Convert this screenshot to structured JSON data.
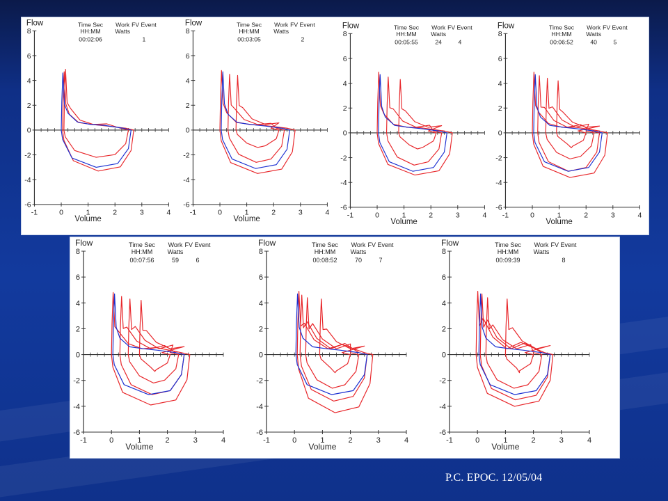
{
  "slide": {
    "footer": "P.C. EPOC. 12/05/04",
    "colors": {
      "background": "#123a9e",
      "panel": "#ffffff",
      "exercise": "#e8262a",
      "baseline": "#1a2fd1"
    }
  },
  "chart_data": [
    {
      "type": "line",
      "plot": "flow-volume",
      "ylabel": "Flow",
      "xlabel": "Volume",
      "xlim": [
        -1,
        4
      ],
      "ylim": [
        -6,
        8
      ],
      "xticks": [
        "-1",
        "0",
        "1",
        "2",
        "3",
        "4"
      ],
      "yticks": [
        "8",
        "6",
        "4",
        "2",
        "0",
        "-2",
        "-4",
        "-6"
      ],
      "header_labels": {
        "col1": [
          "Time Sec",
          "HH:MM"
        ],
        "col2": [
          "Work",
          "Watts"
        ],
        "col3": [
          "FV Event"
        ]
      },
      "time": "00:02:06",
      "work": "",
      "event": "1",
      "loops": [
        {
          "series": "exercise",
          "count": 2
        },
        {
          "series": "baseline",
          "count": 1
        }
      ]
    },
    {
      "type": "line",
      "plot": "flow-volume",
      "ylabel": "Flow",
      "xlabel": "Volume",
      "xlim": [
        -1,
        4
      ],
      "ylim": [
        -6,
        8
      ],
      "xticks": [
        "-1",
        "0",
        "1",
        "2",
        "3",
        "4"
      ],
      "yticks": [
        "8",
        "6",
        "4",
        "2",
        "0",
        "-2",
        "-4",
        "-6"
      ],
      "header_labels": {
        "col1": [
          "Time Sec",
          "HH:MM"
        ],
        "col2": [
          "Work",
          "Watts"
        ],
        "col3": [
          "FV Event"
        ]
      },
      "time": "00:03:05",
      "work": "",
      "event": "2",
      "loops": [
        {
          "series": "exercise",
          "count": 3
        },
        {
          "series": "baseline",
          "count": 1
        }
      ]
    },
    {
      "type": "line",
      "plot": "flow-volume",
      "ylabel": "Flow",
      "xlabel": "Volume",
      "xlim": [
        -1,
        4
      ],
      "ylim": [
        -6,
        8
      ],
      "xticks": [
        "-1",
        "0",
        "1",
        "2",
        "3",
        "4"
      ],
      "yticks": [
        "8",
        "6",
        "4",
        "2",
        "0",
        "-2",
        "-4",
        "-6"
      ],
      "header_labels": {
        "col1": [
          "Time Sec",
          "HH:MM"
        ],
        "col2": [
          "Work",
          "Watts"
        ],
        "col3": [
          "FV Event"
        ]
      },
      "time": "00:05:55",
      "work": "24",
      "event": "4",
      "loops": [
        {
          "series": "exercise",
          "count": 3
        },
        {
          "series": "baseline",
          "count": 1
        }
      ]
    },
    {
      "type": "line",
      "plot": "flow-volume",
      "ylabel": "Flow",
      "xlabel": "Volume",
      "xlim": [
        -1,
        4
      ],
      "ylim": [
        -6,
        8
      ],
      "xticks": [
        "-1",
        "0",
        "1",
        "2",
        "3",
        "4"
      ],
      "yticks": [
        "8",
        "6",
        "4",
        "2",
        "0",
        "-2",
        "-4",
        "-6"
      ],
      "header_labels": {
        "col1": [
          "Time Sec",
          "HH:MM"
        ],
        "col2": [
          "Work",
          "Watts"
        ],
        "col3": [
          "FV Event"
        ]
      },
      "time": "00:06:52",
      "work": "40",
      "event": "5",
      "loops": [
        {
          "series": "exercise",
          "count": 4
        },
        {
          "series": "baseline",
          "count": 1
        }
      ]
    },
    {
      "type": "line",
      "plot": "flow-volume",
      "ylabel": "Flow",
      "xlabel": "Volume",
      "xlim": [
        -1,
        4
      ],
      "ylim": [
        -6,
        8
      ],
      "xticks": [
        "-1",
        "0",
        "1",
        "2",
        "3",
        "4"
      ],
      "yticks": [
        "8",
        "6",
        "4",
        "2",
        "0",
        "-2",
        "-4",
        "-6"
      ],
      "header_labels": {
        "col1": [
          "Time Sec",
          "HH:MM"
        ],
        "col2": [
          "Work",
          "Watts"
        ],
        "col3": [
          "FV Event"
        ]
      },
      "time": "00:07:56",
      "work": "59",
      "event": "6",
      "loops": [
        {
          "series": "exercise",
          "count": 4
        },
        {
          "series": "baseline",
          "count": 1
        }
      ]
    },
    {
      "type": "line",
      "plot": "flow-volume",
      "ylabel": "Flow",
      "xlabel": "Volume",
      "xlim": [
        -1,
        4
      ],
      "ylim": [
        -6,
        8
      ],
      "xticks": [
        "-1",
        "0",
        "1",
        "2",
        "3",
        "4"
      ],
      "yticks": [
        "8",
        "6",
        "4",
        "2",
        "0",
        "-2",
        "-4",
        "-6"
      ],
      "header_labels": {
        "col1": [
          "Time Sec",
          "HH:MM"
        ],
        "col2": [
          "Work",
          "Watts"
        ],
        "col3": [
          "FV Event"
        ]
      },
      "time": "00:08:52",
      "work": "70",
      "event": "7",
      "loops": [
        {
          "series": "exercise",
          "count": 4
        },
        {
          "series": "baseline",
          "count": 1
        }
      ]
    },
    {
      "type": "line",
      "plot": "flow-volume",
      "ylabel": "Flow",
      "xlabel": "Volume",
      "xlim": [
        -1,
        4
      ],
      "ylim": [
        -6,
        8
      ],
      "xticks": [
        "-1",
        "0",
        "1",
        "2",
        "3",
        "4"
      ],
      "yticks": [
        "8",
        "6",
        "4",
        "2",
        "0",
        "-2",
        "-4",
        "-6"
      ],
      "header_labels": {
        "col1": [
          "Time Sec",
          "HH:MM"
        ],
        "col2": [
          "Work",
          "Watts"
        ],
        "col3": [
          "FV Event"
        ]
      },
      "time": "00:09:39",
      "work": "",
      "event": "8",
      "loops": [
        {
          "series": "exercise",
          "count": 4
        },
        {
          "series": "baseline",
          "count": 1
        }
      ]
    }
  ]
}
